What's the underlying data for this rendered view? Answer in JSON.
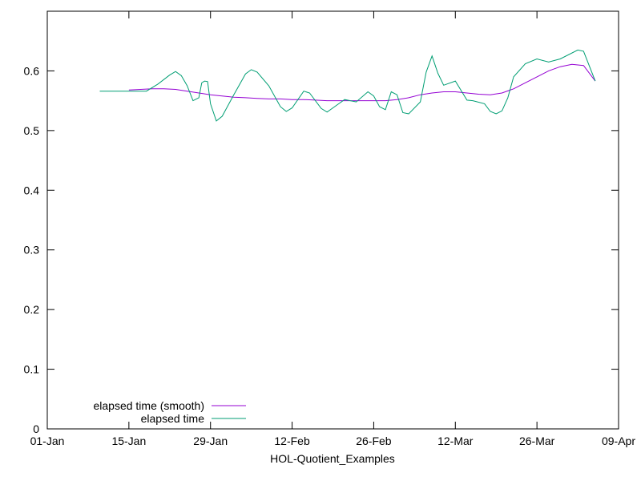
{
  "chart_data": {
    "type": "line",
    "title": "",
    "xlabel": "HOL-Quotient_Examples",
    "ylabel": "",
    "x_ticks": [
      "01-Jan",
      "15-Jan",
      "29-Jan",
      "12-Feb",
      "26-Feb",
      "12-Mar",
      "26-Mar",
      "09-Apr"
    ],
    "y_ticks": [
      "0",
      "0.1",
      "0.2",
      "0.3",
      "0.4",
      "0.5",
      "0.6"
    ],
    "xlim": [
      "01-Jan",
      "09-Apr"
    ],
    "ylim": [
      0,
      0.7
    ],
    "grid": false,
    "legend_position": "bottom-left",
    "series": [
      {
        "name": "elapsed time (smooth)",
        "color": "#9400d3",
        "points": [
          [
            "15-Jan",
            0.568
          ],
          [
            "17-Jan",
            0.569
          ],
          [
            "19-Jan",
            0.57
          ],
          [
            "21-Jan",
            0.57
          ],
          [
            "23-Jan",
            0.569
          ],
          [
            "25-Jan",
            0.566
          ],
          [
            "27-Jan",
            0.563
          ],
          [
            "29-Jan",
            0.56
          ],
          [
            "31-Jan",
            0.558
          ],
          [
            "02-Feb",
            0.556
          ],
          [
            "04-Feb",
            0.555
          ],
          [
            "06-Feb",
            0.554
          ],
          [
            "08-Feb",
            0.553
          ],
          [
            "10-Feb",
            0.553
          ],
          [
            "12-Feb",
            0.552
          ],
          [
            "14-Feb",
            0.552
          ],
          [
            "16-Feb",
            0.551
          ],
          [
            "18-Feb",
            0.55
          ],
          [
            "20-Feb",
            0.55
          ],
          [
            "22-Feb",
            0.55
          ],
          [
            "24-Feb",
            0.55
          ],
          [
            "26-Feb",
            0.55
          ],
          [
            "28-Feb",
            0.55
          ],
          [
            "02-Mar",
            0.552
          ],
          [
            "04-Mar",
            0.555
          ],
          [
            "06-Mar",
            0.56
          ],
          [
            "08-Mar",
            0.563
          ],
          [
            "10-Mar",
            0.565
          ],
          [
            "12-Mar",
            0.565
          ],
          [
            "14-Mar",
            0.563
          ],
          [
            "16-Mar",
            0.561
          ],
          [
            "18-Mar",
            0.56
          ],
          [
            "20-Mar",
            0.563
          ],
          [
            "22-Mar",
            0.57
          ],
          [
            "24-Mar",
            0.58
          ],
          [
            "26-Mar",
            0.59
          ],
          [
            "28-Mar",
            0.6
          ],
          [
            "30-Mar",
            0.607
          ],
          [
            "01-Apr",
            0.611
          ],
          [
            "03-Apr",
            0.609
          ],
          [
            "05-Apr",
            0.583
          ]
        ]
      },
      {
        "name": "elapsed time",
        "color": "#009e73",
        "points": [
          [
            "10-Jan",
            0.566
          ],
          [
            "12-Jan",
            0.566
          ],
          [
            "14-Jan",
            0.566
          ],
          [
            "16-Jan",
            0.566
          ],
          [
            "18-Jan",
            0.566
          ],
          [
            "20-Jan",
            0.578
          ],
          [
            "22-Jan",
            0.593
          ],
          [
            "23-Jan",
            0.599
          ],
          [
            "24-Jan",
            0.592
          ],
          [
            "25-Jan",
            0.575
          ],
          [
            "26-Jan",
            0.55
          ],
          [
            "27-Jan",
            0.555
          ],
          [
            "27.5-Jan",
            0.58
          ],
          [
            "28-Jan",
            0.583
          ],
          [
            "28.5-Jan",
            0.582
          ],
          [
            "29-Jan",
            0.545
          ],
          [
            "30-Jan",
            0.516
          ],
          [
            "31-Jan",
            0.524
          ],
          [
            "02-Feb",
            0.56
          ],
          [
            "04-Feb",
            0.595
          ],
          [
            "05-Feb",
            0.602
          ],
          [
            "06-Feb",
            0.598
          ],
          [
            "08-Feb",
            0.575
          ],
          [
            "10-Feb",
            0.54
          ],
          [
            "11-Feb",
            0.532
          ],
          [
            "12-Feb",
            0.538
          ],
          [
            "14-Feb",
            0.566
          ],
          [
            "15-Feb",
            0.563
          ],
          [
            "17-Feb",
            0.537
          ],
          [
            "18-Feb",
            0.531
          ],
          [
            "20-Feb",
            0.545
          ],
          [
            "21-Feb",
            0.552
          ],
          [
            "23-Feb",
            0.548
          ],
          [
            "25-Feb",
            0.565
          ],
          [
            "26-Feb",
            0.558
          ],
          [
            "27-Feb",
            0.54
          ],
          [
            "28-Feb",
            0.535
          ],
          [
            "01-Mar",
            0.565
          ],
          [
            "02-Mar",
            0.56
          ],
          [
            "03-Mar",
            0.53
          ],
          [
            "04-Mar",
            0.528
          ],
          [
            "06-Mar",
            0.548
          ],
          [
            "07-Mar",
            0.598
          ],
          [
            "08-Mar",
            0.625
          ],
          [
            "09-Mar",
            0.596
          ],
          [
            "10-Mar",
            0.576
          ],
          [
            "12-Mar",
            0.583
          ],
          [
            "14-Mar",
            0.551
          ],
          [
            "15-Mar",
            0.55
          ],
          [
            "17-Mar",
            0.545
          ],
          [
            "18-Mar",
            0.532
          ],
          [
            "19-Mar",
            0.528
          ],
          [
            "20-Mar",
            0.533
          ],
          [
            "21-Mar",
            0.555
          ],
          [
            "22-Mar",
            0.59
          ],
          [
            "24-Mar",
            0.612
          ],
          [
            "26-Mar",
            0.62
          ],
          [
            "28-Mar",
            0.615
          ],
          [
            "30-Mar",
            0.62
          ],
          [
            "02-Apr",
            0.635
          ],
          [
            "03-Apr",
            0.633
          ],
          [
            "05-Apr",
            0.583
          ]
        ]
      }
    ]
  }
}
